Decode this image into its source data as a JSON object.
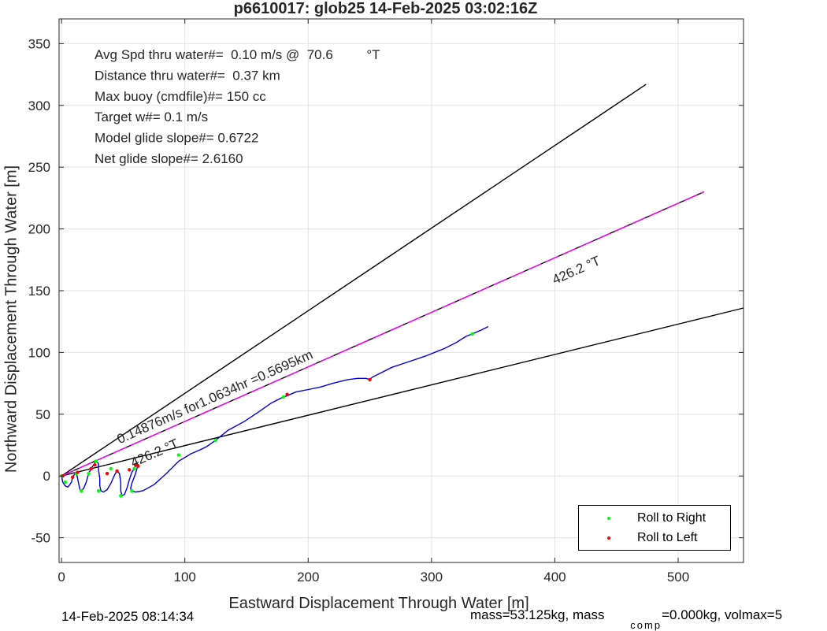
{
  "chart_data": {
    "type": "line",
    "title": "p6610017: glob25 14-Feb-2025 03:02:16Z",
    "xlabel": "Eastward Displacement Through Water [m]",
    "ylabel": "Northward Displacement Through Water [m]",
    "xlim": [
      -2,
      553
    ],
    "ylim": [
      -70,
      370
    ],
    "xticks": [
      0,
      100,
      200,
      300,
      400,
      500
    ],
    "yticks": [
      -50,
      0,
      50,
      100,
      150,
      200,
      250,
      300,
      350
    ],
    "grid": true,
    "stats": [
      "Avg Spd thru water#=  0.10 m/s @  70.6         °T",
      "Distance thru water#=  0.37 km",
      "Max buoy (cmdfile)#= 150 cc",
      "Target w#= 0.1 m/s",
      "Model glide slope#= 0.6722",
      "Net glide slope#= 2.6160"
    ],
    "annotations": [
      {
        "text": "0.14876m/s for1.0634hr =0.5695km",
        "x": 47,
        "y": 26,
        "angle_deg": 23.9
      },
      {
        "text": "426.2  °T",
        "x": 58,
        "y": 7,
        "angle_deg": 23.9
      },
      {
        "text": "426.2  °T",
        "x": 400,
        "y": 155,
        "angle_deg": 23.9
      }
    ],
    "series": [
      {
        "name": "",
        "color": "#000000",
        "style": "solid",
        "segments": [
          {
            "x": [
              0,
              474
            ],
            "y": [
              0,
              317
            ]
          },
          {
            "x": [
              0,
              553
            ],
            "y": [
              0,
              136
            ]
          }
        ]
      },
      {
        "name": "",
        "color": "#000000",
        "style": "solid",
        "x": [
          0,
          521
        ],
        "y": [
          0,
          230
        ]
      },
      {
        "name": "",
        "color": "#ff00ff",
        "style": "dashed",
        "x": [
          0,
          521
        ],
        "y": [
          0,
          230
        ]
      },
      {
        "name": "",
        "color": "#0000e0",
        "style": "solid",
        "x": [
          0,
          1,
          3,
          5,
          6,
          8,
          9,
          11,
          12,
          13,
          14,
          15,
          16,
          18,
          20,
          22,
          24,
          26,
          28,
          30,
          30,
          31,
          31,
          32,
          34,
          37,
          40,
          43,
          45,
          47,
          48,
          48,
          49,
          51,
          53,
          55,
          57,
          59,
          60,
          62,
          60,
          57,
          56,
          57,
          60,
          66,
          75,
          85,
          95,
          105,
          112,
          118,
          125,
          135,
          148,
          160,
          170,
          178,
          183,
          190,
          200,
          210,
          220,
          232,
          240,
          247,
          250,
          252,
          258,
          268,
          280,
          295,
          310,
          320,
          328,
          333,
          340,
          346
        ],
        "y": [
          0,
          -5,
          -8,
          -9,
          -8,
          -5,
          -1,
          2,
          3,
          -2,
          -7,
          -11,
          -12,
          -10,
          -5,
          2,
          6,
          9,
          12,
          10,
          5,
          -2,
          -8,
          -12,
          -13,
          -11,
          -6,
          1,
          4,
          2,
          -5,
          -12,
          -16,
          -15,
          -10,
          -3,
          3,
          6,
          8,
          9,
          2,
          -6,
          -10,
          -12,
          -13,
          -12,
          -7,
          2,
          12,
          18,
          21,
          24,
          29,
          37,
          44,
          52,
          59,
          63,
          65,
          68,
          70,
          72,
          75,
          78,
          79,
          79,
          78,
          80,
          83,
          88,
          92,
          97,
          103,
          108,
          113,
          115,
          118,
          121
        ]
      }
    ],
    "markers": {
      "roll_right": {
        "color": "#00ff00",
        "x": [
          0,
          3,
          12,
          16,
          22,
          28,
          30,
          40,
          48,
          59,
          57,
          95,
          125,
          180,
          333
        ],
        "y": [
          0,
          -5,
          2,
          -12,
          2,
          12,
          -12,
          6,
          -16,
          6,
          -12,
          17,
          29,
          64,
          115
        ]
      },
      "roll_left": {
        "color": "#ff0000",
        "x": [
          1,
          9,
          13,
          24,
          27,
          37,
          45,
          60,
          62,
          55,
          183,
          250
        ],
        "y": [
          0,
          -1,
          3,
          6,
          9,
          2,
          4,
          9,
          8,
          5,
          66,
          78
        ]
      }
    },
    "legend": {
      "placement": "bottom-right",
      "entries": [
        {
          "label": "Roll to Right",
          "color": "#00ff00"
        },
        {
          "label": "Roll to Left",
          "color": "#ff0000"
        }
      ]
    },
    "footer_left": "14-Feb-2025 08:14:34",
    "footer_right_main": "mass=53.125kg, mass",
    "footer_right_sub": "comp",
    "footer_right_tail": "=0.000kg, volmax=5"
  }
}
